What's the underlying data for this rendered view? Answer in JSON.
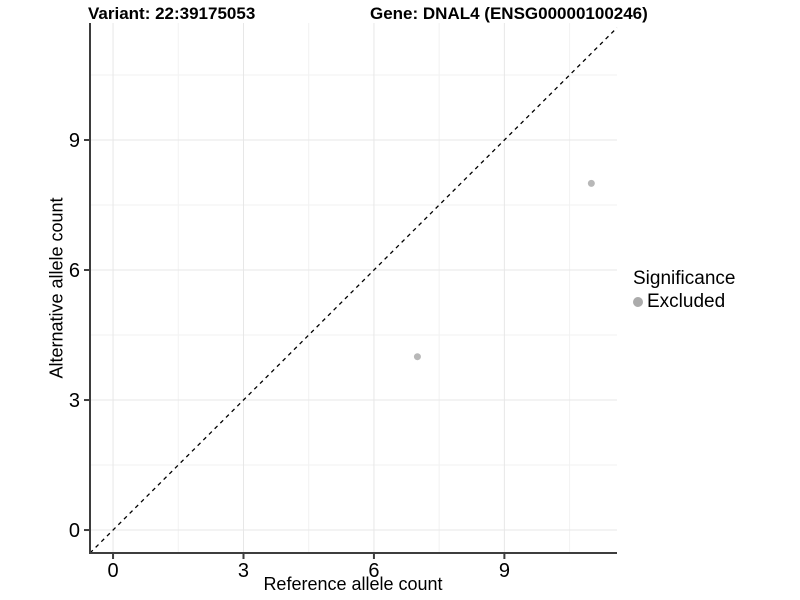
{
  "title_left": "Variant: 22:39175053",
  "title_right": "Gene: DNAL4 (ENSG00000100246)",
  "legend": {
    "title": "Significance",
    "items": [
      {
        "label": "Excluded",
        "color": "#ababab"
      }
    ]
  },
  "colors": {
    "grid_major": "#e7e7e7",
    "grid_minor": "#f2f2f2",
    "axis": "#3d3d3d",
    "point": "#b8b8b8",
    "dashed_line": "#000000"
  },
  "chart_data": {
    "type": "scatter",
    "title": "Variant: 22:39175053   Gene: DNAL4 (ENSG00000100246)",
    "xlabel": "Reference allele count",
    "ylabel": "Alternative allele count",
    "x_ticks": [
      0,
      3,
      6,
      9
    ],
    "y_ticks": [
      0,
      3,
      6,
      9
    ],
    "x_minor_ticks": [
      1.5,
      4.5,
      7.5,
      10.5
    ],
    "y_minor_ticks": [
      1.5,
      4.5,
      7.5,
      10.5
    ],
    "xlim": [
      -0.53,
      11.59
    ],
    "ylim": [
      -0.53,
      11.7
    ],
    "grid": true,
    "legend_position": "right",
    "series": [
      {
        "name": "Excluded",
        "points": [
          {
            "x": 7,
            "y": 4
          },
          {
            "x": 11,
            "y": 8
          }
        ]
      }
    ],
    "identity_line": {
      "style": "dashed",
      "from": [
        -0.53,
        -0.53
      ],
      "to": [
        11.59,
        11.59
      ]
    }
  }
}
